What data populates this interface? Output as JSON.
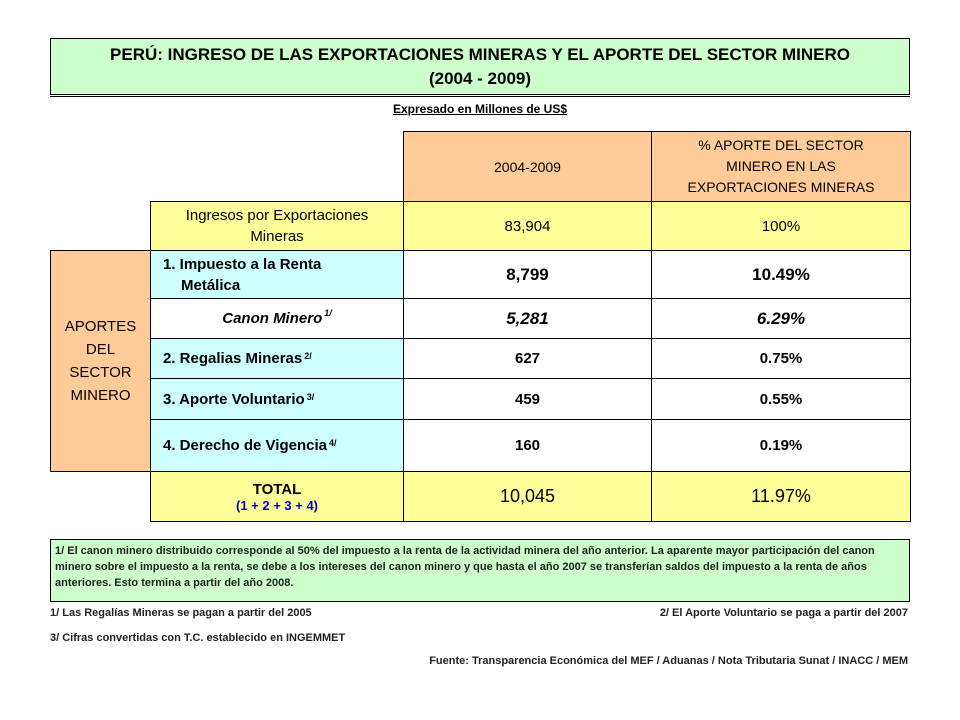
{
  "title": {
    "line1": "PERÚ: INGRESO DE LAS EXPORTACIONES MINERAS Y EL APORTE DEL SECTOR MINERO",
    "line2": "(2004 - 2009)"
  },
  "subtitle": "Expresado en Millones de US$",
  "table": {
    "header": {
      "period": "2004-2009",
      "pct": "% APORTE DEL SECTOR MINERO EN LAS EXPORTACIONES MINERAS"
    },
    "income_row": {
      "label": "Ingresos por Exportaciones Mineras",
      "value": "83,904",
      "pct": "100%"
    },
    "group_label": "APORTES DEL SECTOR MINERO",
    "rows": [
      {
        "label_line1": "1. Impuesto a la Renta",
        "label_line2": "Metálica",
        "note": "",
        "value": "8,799",
        "pct": "10.49%"
      },
      {
        "label_line1": "Canon Minero",
        "label_line2": "",
        "note": "1/",
        "value": "5,281",
        "pct": "6.29%"
      },
      {
        "label_line1": "2. Regalias Mineras",
        "label_line2": "",
        "note": "2/",
        "value": "627",
        "pct": "0.75%"
      },
      {
        "label_line1": "3. Aporte Voluntario",
        "label_line2": "",
        "note": "3/",
        "value": "459",
        "pct": "0.55%"
      },
      {
        "label_line1": "4. Derecho de Vigencia",
        "label_line2": "",
        "note": "4/",
        "value": "160",
        "pct": "0.19%"
      }
    ],
    "total": {
      "label": "TOTAL",
      "formula": "(1 + 2 + 3 + 4)",
      "value": "10,045",
      "pct": "11.97%"
    }
  },
  "note1": "1/ El canon minero distribuido corresponde al 50% del impuesto a la renta de la actividad minera del año anterior. La aparente mayor participación del canon minero sobre el impuesto a la renta, se debe a los intereses del canon minero y que hasta el año 2007 se transferían saldos del impuesto a la renta de años anteriores.  Esto termina a partir del año 2008.",
  "footnotes": {
    "left1": "1/ Las Regalías Mineras se pagan a partir del 2005",
    "right1": "2/ El Aporte Voluntario se paga a partir del 2007",
    "left2": "3/ Cifras convertidas con T.C. establecido en INGEMMET",
    "source": "Fuente: Transparencia Económica del MEF / Aduanas / Nota Tributaria Sunat / INACC / MEM"
  }
}
